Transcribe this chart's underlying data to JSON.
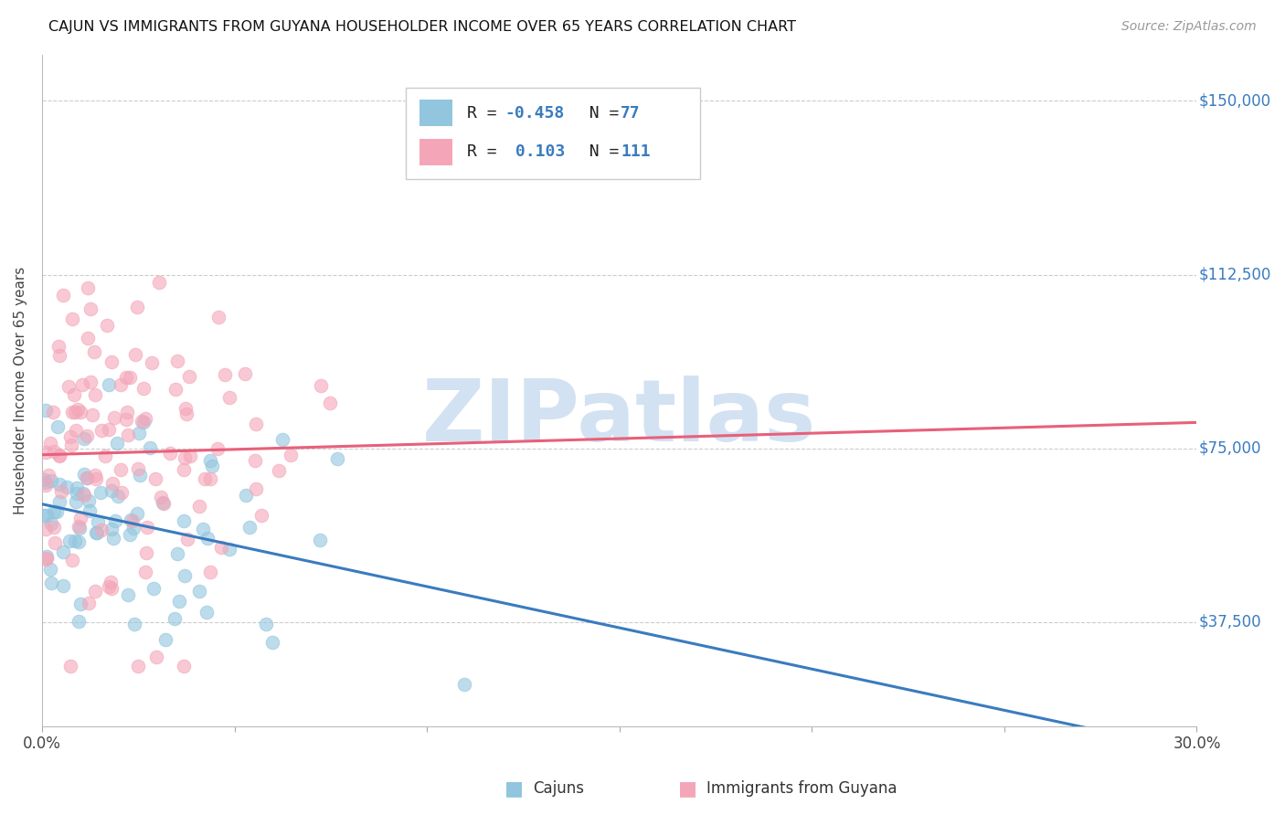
{
  "title": "CAJUN VS IMMIGRANTS FROM GUYANA HOUSEHOLDER INCOME OVER 65 YEARS CORRELATION CHART",
  "source": "Source: ZipAtlas.com",
  "ylabel": "Householder Income Over 65 years",
  "ytick_labels": [
    "$150,000",
    "$112,500",
    "$75,000",
    "$37,500"
  ],
  "ytick_values": [
    150000,
    112500,
    75000,
    37500
  ],
  "ymin": 15000,
  "ymax": 160000,
  "xmin": 0.0,
  "xmax": 0.3,
  "cajun_R": -0.458,
  "cajun_N": 77,
  "guyana_R": 0.103,
  "guyana_N": 111,
  "cajun_color": "#92c5de",
  "guyana_color": "#f4a6b8",
  "cajun_line_color": "#3a7bbf",
  "guyana_line_color": "#e8607a",
  "watermark_text": "ZIPatlas",
  "watermark_color": "#ccddf0",
  "legend_cajun": "Cajuns",
  "legend_guyana": "Immigrants from Guyana"
}
